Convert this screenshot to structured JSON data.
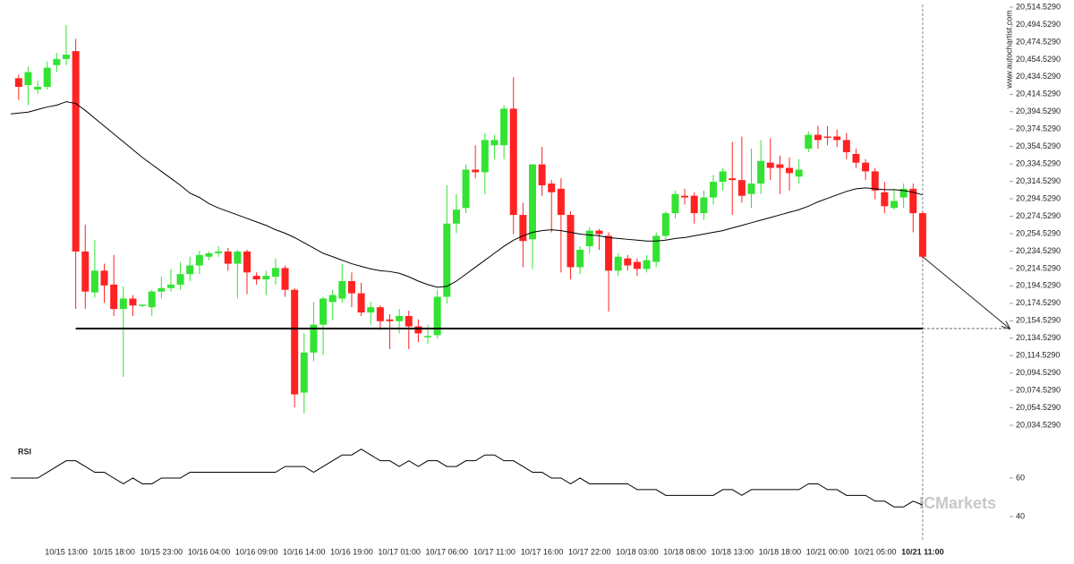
{
  "chart_data": {
    "type": "candlestick",
    "source": "www.autochartist.com",
    "watermark": "ICMarkets",
    "categories": [
      null,
      null,
      null,
      null,
      null,
      "10/15 13:00",
      null,
      null,
      null,
      null,
      "10/15 18:00",
      null,
      null,
      null,
      null,
      "10/15 23:00",
      null,
      null,
      null,
      null,
      "10/16 04:00",
      null,
      null,
      null,
      null,
      "10/16 09:00",
      null,
      null,
      null,
      null,
      "10/16 14:00",
      null,
      null,
      null,
      null,
      "10/16 19:00",
      null,
      null,
      null,
      null,
      "10/17 01:00",
      null,
      null,
      null,
      null,
      "10/17 06:00",
      null,
      null,
      null,
      null,
      "10/17 11:00",
      null,
      null,
      null,
      null,
      "10/17 16:00",
      null,
      null,
      null,
      null,
      "10/17 22:00",
      null,
      null,
      null,
      null,
      "10/18 03:00",
      null,
      null,
      null,
      null,
      "10/18 08:00",
      null,
      null,
      null,
      null,
      "10/18 13:00",
      null,
      null,
      null,
      null,
      "10/18 18:00",
      null,
      null,
      null,
      null,
      "10/21 00:00",
      null,
      null,
      null,
      null,
      "10/21 05:00",
      null,
      null,
      null,
      null,
      "10/21 11:00"
    ],
    "open": [
      20433,
      20425,
      20420,
      20423,
      20448,
      20455,
      20464,
      20234,
      20187,
      20212,
      20196,
      20168,
      20180,
      20172,
      20170,
      20188,
      20192,
      20196,
      20208,
      20218,
      20228,
      20232,
      20234,
      20220,
      20234,
      20206,
      20202,
      20205,
      20215,
      20190,
      20072,
      20118,
      20150,
      20176,
      20180,
      20200,
      20186,
      20164,
      20170,
      20156,
      20154,
      20160,
      20148,
      20136,
      20138,
      20182,
      20266,
      20284,
      20328,
      20325,
      20356,
      20356,
      20398,
      20276,
      20248,
      20334,
      20312,
      20306,
      20276,
      20216,
      20240,
      20258,
      20252,
      20212,
      20226,
      20222,
      20214,
      20222,
      20252,
      20278,
      20298,
      20298,
      20278,
      20296,
      20314,
      20318,
      20316,
      20300,
      20312,
      20336,
      20334,
      20330,
      20320,
      20352,
      20368,
      20366,
      20366,
      20362,
      20346,
      20336,
      20326,
      20302,
      20284,
      20296,
      20306,
      20278
    ],
    "high": [
      20437,
      20446,
      20430,
      20452,
      20462,
      20494,
      20478,
      20265,
      20247,
      20220,
      20230,
      20194,
      20184,
      20173,
      20190,
      20205,
      20214,
      20222,
      20228,
      20235,
      20234,
      20240,
      20238,
      20236,
      20236,
      20210,
      20212,
      20226,
      20218,
      20192,
      20140,
      20176,
      20182,
      20190,
      20220,
      20210,
      20198,
      20176,
      20172,
      20162,
      20168,
      20166,
      20156,
      20150,
      20190,
      20310,
      20300,
      20334,
      20356,
      20370,
      20368,
      20402,
      20434,
      20290,
      20334,
      20354,
      20316,
      20318,
      20280,
      20240,
      20262,
      20260,
      20256,
      20232,
      20230,
      20226,
      20230,
      20256,
      20280,
      20304,
      20306,
      20302,
      20304,
      20322,
      20330,
      20360,
      20366,
      20352,
      20362,
      20364,
      20344,
      20342,
      20340,
      20372,
      20378,
      20378,
      20374,
      20370,
      20352,
      20340,
      20330,
      20314,
      20306,
      20312,
      20312,
      20280
    ],
    "low": [
      20408,
      20402,
      20415,
      20420,
      20440,
      20448,
      20168,
      20168,
      20181,
      20175,
      20160,
      20090,
      20160,
      20170,
      20160,
      20180,
      20188,
      20190,
      20200,
      20208,
      20224,
      20228,
      20212,
      20180,
      20185,
      20196,
      20184,
      20196,
      20182,
      20055,
      20048,
      20108,
      20115,
      20155,
      20175,
      20170,
      20160,
      20150,
      20144,
      20122,
      20140,
      20122,
      20130,
      20128,
      20134,
      20174,
      20255,
      20278,
      20318,
      20300,
      20340,
      20340,
      20254,
      20216,
      20214,
      20298,
      20256,
      20210,
      20202,
      20208,
      20232,
      20236,
      20165,
      20206,
      20212,
      20206,
      20210,
      20216,
      20248,
      20272,
      20288,
      20266,
      20270,
      20288,
      20304,
      20276,
      20290,
      20284,
      20300,
      20316,
      20300,
      20304,
      20312,
      20348,
      20352,
      20356,
      20354,
      20340,
      20330,
      20316,
      20294,
      20278,
      20282,
      20284,
      20256,
      20226
    ],
    "close": [
      20423,
      20440,
      20423,
      20445,
      20455,
      20460,
      20234,
      20188,
      20212,
      20195,
      20168,
      20180,
      20172,
      20173,
      20188,
      20192,
      20196,
      20208,
      20218,
      20230,
      20232,
      20234,
      20220,
      20234,
      20210,
      20202,
      20206,
      20215,
      20190,
      20070,
      20118,
      20150,
      20180,
      20184,
      20200,
      20186,
      20164,
      20170,
      20154,
      20154,
      20160,
      20148,
      20140,
      20137,
      20182,
      20266,
      20282,
      20328,
      20325,
      20362,
      20362,
      20398,
      20276,
      20246,
      20334,
      20310,
      20302,
      20276,
      20216,
      20236,
      20258,
      20254,
      20212,
      20228,
      20218,
      20214,
      20224,
      20252,
      20278,
      20300,
      20296,
      20278,
      20296,
      20314,
      20326,
      20316,
      20298,
      20312,
      20338,
      20330,
      20330,
      20324,
      20328,
      20368,
      20362,
      20366,
      20362,
      20348,
      20336,
      20326,
      20304,
      20286,
      20292,
      20306,
      20278,
      20228
    ],
    "up_color": "#33e233",
    "down_color": "#ff2222",
    "moving_average": {
      "color": "#000000",
      "values": [
        20392,
        20394,
        20397,
        20400,
        20402,
        20406,
        20404,
        20396,
        20387,
        20378,
        20369,
        20360,
        20351,
        20342,
        20334,
        20326,
        20318,
        20310,
        20301,
        20296,
        20289,
        20284,
        20280,
        20276,
        20272,
        20268,
        20264,
        20259,
        20255,
        20250,
        20244,
        20238,
        20232,
        20228,
        20224,
        20220,
        20217,
        20214,
        20212,
        20211,
        20209,
        20205,
        20200,
        20196,
        20193,
        20194,
        20200,
        20208,
        20216,
        20224,
        20232,
        20240,
        20247,
        20252,
        20256,
        20258,
        20259,
        20258,
        20256,
        20254,
        20253,
        20252,
        20250,
        20249,
        20248,
        20247,
        20246,
        20246,
        20247,
        20249,
        20250,
        20252,
        20254,
        20256,
        20258,
        20261,
        20264,
        20267,
        20270,
        20273,
        20276,
        20279,
        20282,
        20286,
        20291,
        20295,
        20299,
        20303,
        20306,
        20307,
        20306,
        20305,
        20305,
        20304,
        20302,
        20299
      ]
    },
    "support_level": 20145.5,
    "ylim": [
      20034.529,
      20514.529
    ],
    "yticks": [
      {
        "value": 20034.529,
        "label": "20,034.5290"
      },
      {
        "value": 20054.529,
        "label": "20,054.5290"
      },
      {
        "value": 20074.529,
        "label": "20,074.5290"
      },
      {
        "value": 20094.529,
        "label": "20,094.5290"
      },
      {
        "value": 20114.529,
        "label": "20,114.5290"
      },
      {
        "value": 20134.529,
        "label": "20,134.5290"
      },
      {
        "value": 20154.529,
        "label": "20,154.5290"
      },
      {
        "value": 20174.529,
        "label": "20,174.5290"
      },
      {
        "value": 20194.529,
        "label": "20,194.5290"
      },
      {
        "value": 20214.529,
        "label": "20,214.5290"
      },
      {
        "value": 20234.529,
        "label": "20,234.5290"
      },
      {
        "value": 20254.529,
        "label": "20,254.5290"
      },
      {
        "value": 20274.529,
        "label": "20,274.5290"
      },
      {
        "value": 20294.529,
        "label": "20,294.5290"
      },
      {
        "value": 20314.529,
        "label": "20,314.5290"
      },
      {
        "value": 20334.529,
        "label": "20,334.5290"
      },
      {
        "value": 20354.529,
        "label": "20,354.5290"
      },
      {
        "value": 20374.529,
        "label": "20,374.5290"
      },
      {
        "value": 20394.529,
        "label": "20,394.5290"
      },
      {
        "value": 20414.529,
        "label": "20,414.5290"
      },
      {
        "value": 20434.529,
        "label": "20,434.5290"
      },
      {
        "value": 20454.529,
        "label": "20,454.5290"
      },
      {
        "value": 20474.529,
        "label": "20,474.5290"
      },
      {
        "value": 20494.529,
        "label": "20,494.5290"
      },
      {
        "value": 20514.529,
        "label": "20,514.5290"
      }
    ],
    "rsi": {
      "title": "RSI",
      "color": "#000000",
      "ylim": [
        30,
        78
      ],
      "yticks": [
        40,
        60
      ],
      "values": [
        60,
        60,
        60,
        63,
        66,
        69,
        69,
        66,
        63,
        63,
        60,
        57,
        60,
        57,
        57,
        60,
        60,
        60,
        63,
        63,
        63,
        63,
        63,
        63,
        63,
        63,
        63,
        63,
        66,
        66,
        66,
        63,
        66,
        69,
        72,
        72,
        75,
        72,
        69,
        69,
        66,
        69,
        66,
        69,
        69,
        66,
        66,
        69,
        69,
        72,
        72,
        69,
        69,
        66,
        63,
        63,
        60,
        60,
        57,
        60,
        57,
        57,
        57,
        57,
        57,
        54,
        54,
        54,
        51,
        51,
        51,
        51,
        51,
        51,
        54,
        54,
        51,
        54,
        54,
        54,
        54,
        54,
        54,
        57,
        57,
        54,
        54,
        51,
        51,
        51,
        48,
        48,
        45,
        45,
        48,
        46
      ]
    }
  }
}
